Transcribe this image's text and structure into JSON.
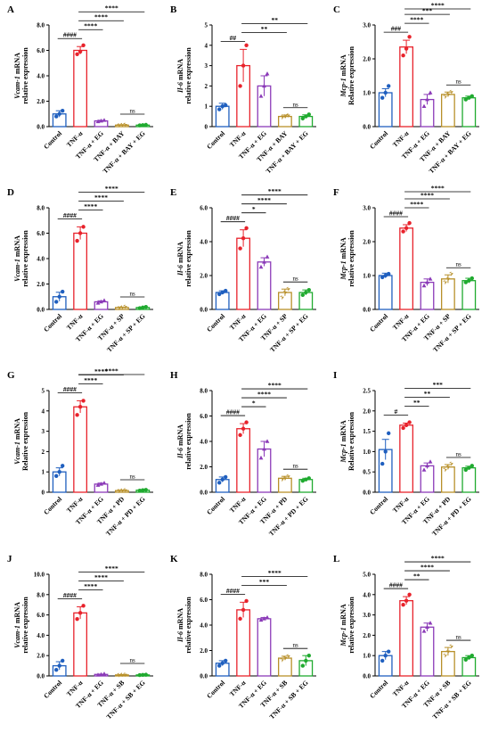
{
  "figure": {
    "colors": {
      "control": "#1f5fbf",
      "tnf": "#e8222b",
      "eg": "#8b3ab8",
      "inhibitor": "#b8902a",
      "combo": "#1faa2f"
    }
  },
  "chart_data": [
    {
      "panel": "A",
      "type": "bar",
      "gene": "Vcam-1",
      "ylabel_gene": "Vcam-1 mRNA",
      "ylabel_sub": "relative expression",
      "ylim": [
        0,
        8
      ],
      "yticks": [
        "0.0",
        "2.0",
        "4.0",
        "6.0",
        "8.0"
      ],
      "categories": [
        "Control",
        "TNF-α",
        "TNF-α + EG",
        "TNF-α + BAY",
        "TNF-α + BAY + EG"
      ],
      "values": [
        1.0,
        6.0,
        0.45,
        0.12,
        0.12
      ],
      "errors": [
        0.25,
        0.3,
        0.05,
        0.03,
        0.03
      ],
      "points": [
        [
          0.8,
          1.0,
          1.25
        ],
        [
          5.7,
          5.9,
          6.4
        ],
        [
          0.4,
          0.45,
          0.5
        ],
        [
          0.1,
          0.12,
          0.14
        ],
        [
          0.1,
          0.12,
          0.14
        ]
      ],
      "annotations": [
        {
          "from": 0,
          "to": 1,
          "label": "####"
        },
        {
          "from": 1,
          "to": 2,
          "label": "****"
        },
        {
          "from": 1,
          "to": 3,
          "label": "****"
        },
        {
          "from": 1,
          "to": 4,
          "label": "****"
        },
        {
          "from": 3,
          "to": 4,
          "label": "ns"
        }
      ]
    },
    {
      "panel": "B",
      "type": "bar",
      "gene": "Il-6",
      "ylabel_gene": "Il-6 mRNA",
      "ylabel_sub": "relative expression",
      "ylim": [
        0,
        5
      ],
      "yticks": [
        "0",
        "1",
        "2",
        "3",
        "4",
        "5"
      ],
      "categories": [
        "Control",
        "TNF-α",
        "TNF-α + EG",
        "TNF-α + BAY",
        "TNF-α + BAY + EG"
      ],
      "values": [
        1.0,
        3.0,
        2.0,
        0.5,
        0.5
      ],
      "errors": [
        0.15,
        0.8,
        0.5,
        0.07,
        0.08
      ],
      "points": [
        [
          0.85,
          1.0,
          1.05
        ],
        [
          2.0,
          3.0,
          4.0
        ],
        [
          1.5,
          2.0,
          2.6
        ],
        [
          0.45,
          0.5,
          0.55
        ],
        [
          0.4,
          0.5,
          0.6
        ]
      ],
      "annotations": [
        {
          "from": 0,
          "to": 1,
          "label": "##"
        },
        {
          "from": 1,
          "to": 3,
          "label": "**"
        },
        {
          "from": 1,
          "to": 4,
          "label": "**"
        },
        {
          "from": 3,
          "to": 4,
          "label": "ns"
        }
      ]
    },
    {
      "panel": "C",
      "type": "bar",
      "gene": "Mcp-1",
      "ylabel_gene": "Mcp-1 mRNA",
      "ylabel_sub": "Relative expression",
      "ylim": [
        0,
        3
      ],
      "yticks": [
        "0.0",
        "1.0",
        "2.0",
        "3.0"
      ],
      "categories": [
        "Control",
        "TNF-α",
        "TNF-α + EG",
        "TNF-α + BAY",
        "TNF-α + BAY + EG"
      ],
      "values": [
        1.0,
        2.35,
        0.8,
        0.95,
        0.85
      ],
      "errors": [
        0.12,
        0.2,
        0.15,
        0.07,
        0.05
      ],
      "points": [
        [
          0.85,
          1.0,
          1.2
        ],
        [
          2.1,
          2.3,
          2.65
        ],
        [
          0.6,
          0.8,
          1.0
        ],
        [
          0.88,
          0.95,
          1.02
        ],
        [
          0.8,
          0.85,
          0.9
        ]
      ],
      "annotations": [
        {
          "from": 0,
          "to": 1,
          "label": "###"
        },
        {
          "from": 1,
          "to": 2,
          "label": "****"
        },
        {
          "from": 1,
          "to": 3,
          "label": "***"
        },
        {
          "from": 1,
          "to": 4,
          "label": "****"
        },
        {
          "from": 3,
          "to": 4,
          "label": "ns"
        }
      ]
    },
    {
      "panel": "D",
      "type": "bar",
      "gene": "Vcam-1",
      "ylabel_gene": "Vcam-1 mRNA",
      "ylabel_sub": "relative expression",
      "ylim": [
        0,
        8
      ],
      "yticks": [
        "0.0",
        "2.0",
        "4.0",
        "6.0",
        "8.0"
      ],
      "categories": [
        "Control",
        "TNF-α",
        "TNF-α + EG",
        "TNF-α + SP",
        "TNF-α + SP + EG"
      ],
      "values": [
        1.0,
        6.0,
        0.6,
        0.15,
        0.15
      ],
      "errors": [
        0.35,
        0.5,
        0.08,
        0.03,
        0.03
      ],
      "points": [
        [
          0.6,
          1.0,
          1.4
        ],
        [
          5.4,
          6.0,
          6.5
        ],
        [
          0.5,
          0.6,
          0.7
        ],
        [
          0.1,
          0.15,
          0.2
        ],
        [
          0.1,
          0.15,
          0.2
        ]
      ],
      "annotations": [
        {
          "from": 0,
          "to": 1,
          "label": "####"
        },
        {
          "from": 1,
          "to": 2,
          "label": "****"
        },
        {
          "from": 1,
          "to": 3,
          "label": "****"
        },
        {
          "from": 1,
          "to": 4,
          "label": "****"
        },
        {
          "from": 3,
          "to": 4,
          "label": "ns"
        }
      ]
    },
    {
      "panel": "E",
      "type": "bar",
      "gene": "Il-6",
      "ylabel_gene": "Il-6 mRNA",
      "ylabel_sub": "relative expression",
      "ylim": [
        0,
        6
      ],
      "yticks": [
        "0.0",
        "2.0",
        "4.0",
        "6.0"
      ],
      "categories": [
        "Control",
        "TNF-α",
        "TNF-α + EG",
        "TNF-α + SP",
        "TNF-α + SP + EG"
      ],
      "values": [
        1.0,
        4.2,
        2.8,
        1.0,
        1.0
      ],
      "errors": [
        0.1,
        0.5,
        0.25,
        0.2,
        0.15
      ],
      "points": [
        [
          0.9,
          1.0,
          1.1
        ],
        [
          3.6,
          4.2,
          4.8
        ],
        [
          2.5,
          2.8,
          3.1
        ],
        [
          0.7,
          1.0,
          1.2
        ],
        [
          0.85,
          1.0,
          1.15
        ]
      ],
      "annotations": [
        {
          "from": 0,
          "to": 1,
          "label": "####"
        },
        {
          "from": 1,
          "to": 2,
          "label": "*"
        },
        {
          "from": 1,
          "to": 3,
          "label": "****"
        },
        {
          "from": 1,
          "to": 4,
          "label": "****"
        },
        {
          "from": 3,
          "to": 4,
          "label": "ns"
        }
      ]
    },
    {
      "panel": "F",
      "type": "bar",
      "gene": "Mcp-1",
      "ylabel_gene": "Mcp-1 mRNA",
      "ylabel_sub": "relative expression",
      "ylim": [
        0,
        3
      ],
      "yticks": [
        "0.0",
        "1.0",
        "2.0",
        "3.0"
      ],
      "categories": [
        "Control",
        "TNF-α",
        "TNF-α + EG",
        "TNF-α + SP",
        "TNF-α + SP + EG"
      ],
      "values": [
        1.0,
        2.4,
        0.8,
        0.9,
        0.85
      ],
      "errors": [
        0.07,
        0.1,
        0.1,
        0.12,
        0.07
      ],
      "points": [
        [
          0.95,
          1.0,
          1.05
        ],
        [
          2.3,
          2.4,
          2.55
        ],
        [
          0.7,
          0.8,
          0.9
        ],
        [
          0.8,
          0.9,
          1.05
        ],
        [
          0.8,
          0.85,
          0.92
        ]
      ],
      "annotations": [
        {
          "from": 0,
          "to": 1,
          "label": "####"
        },
        {
          "from": 1,
          "to": 2,
          "label": "****"
        },
        {
          "from": 1,
          "to": 3,
          "label": "****"
        },
        {
          "from": 1,
          "to": 4,
          "label": "****"
        },
        {
          "from": 3,
          "to": 4,
          "label": "ns"
        }
      ]
    },
    {
      "panel": "G",
      "type": "bar",
      "gene": "Vcam-1",
      "ylabel_gene": "Vcam-1 mRNA",
      "ylabel_sub": "Relative expression",
      "ylim": [
        0,
        5
      ],
      "yticks": [
        "0",
        "1",
        "2",
        "3",
        "4",
        "5"
      ],
      "categories": [
        "Control",
        "TNF-α",
        "TNF-α + EG",
        "TNF-α + PD",
        "TNF-α + PD + EG"
      ],
      "values": [
        1.0,
        4.2,
        0.4,
        0.08,
        0.1
      ],
      "errors": [
        0.2,
        0.3,
        0.05,
        0.02,
        0.02
      ],
      "points": [
        [
          0.8,
          1.0,
          1.3
        ],
        [
          3.8,
          4.2,
          4.5
        ],
        [
          0.35,
          0.4,
          0.45
        ],
        [
          0.06,
          0.08,
          0.1
        ],
        [
          0.08,
          0.1,
          0.12
        ]
      ],
      "annotations": [
        {
          "from": 0,
          "to": 1,
          "label": "####"
        },
        {
          "from": 1,
          "to": 2,
          "label": "****"
        },
        {
          "from": 1,
          "to": 3,
          "label": "****"
        },
        {
          "from": 1,
          "to": 4,
          "label": "****"
        },
        {
          "from": 3,
          "to": 4,
          "label": "ns"
        }
      ]
    },
    {
      "panel": "H",
      "type": "bar",
      "gene": "Il-6",
      "ylabel_gene": "Il-6 mRNA",
      "ylabel_sub": "relative expression",
      "ylim": [
        0,
        8
      ],
      "yticks": [
        "0.0",
        "2.0",
        "4.0",
        "6.0",
        "8.0"
      ],
      "categories": [
        "Control",
        "TNF-α",
        "TNF-α + EG",
        "TNF-α + PD",
        "TNF-α + PD + EG"
      ],
      "values": [
        1.0,
        5.0,
        3.4,
        1.1,
        1.0
      ],
      "errors": [
        0.2,
        0.4,
        0.6,
        0.15,
        0.1
      ],
      "points": [
        [
          0.75,
          1.0,
          1.2
        ],
        [
          4.5,
          5.0,
          5.5
        ],
        [
          2.7,
          3.4,
          4.0
        ],
        [
          1.0,
          1.1,
          1.25
        ],
        [
          0.9,
          1.0,
          1.1
        ]
      ],
      "annotations": [
        {
          "from": 0,
          "to": 1,
          "label": "####"
        },
        {
          "from": 1,
          "to": 2,
          "label": "*"
        },
        {
          "from": 1,
          "to": 3,
          "label": "****"
        },
        {
          "from": 1,
          "to": 4,
          "label": "****"
        },
        {
          "from": 3,
          "to": 4,
          "label": "ns"
        }
      ]
    },
    {
      "panel": "I",
      "type": "bar",
      "gene": "Mcp-1",
      "ylabel_gene": "Mcp-1 mRNA",
      "ylabel_sub": "Relative expression",
      "ylim": [
        0,
        2.5
      ],
      "yticks": [
        "0.0",
        "0.5",
        "1.0",
        "1.5",
        "2.0",
        "2.5"
      ],
      "categories": [
        "Control",
        "TNF-α",
        "TNF-α + EG",
        "TNF-α + PD",
        "TNF-α + PD + EG"
      ],
      "values": [
        1.05,
        1.65,
        0.65,
        0.62,
        0.6
      ],
      "errors": [
        0.25,
        0.05,
        0.07,
        0.06,
        0.04
      ],
      "points": [
        [
          0.7,
          1.0,
          1.45
        ],
        [
          1.58,
          1.65,
          1.72
        ],
        [
          0.55,
          0.65,
          0.75
        ],
        [
          0.55,
          0.62,
          0.7
        ],
        [
          0.55,
          0.6,
          0.65
        ]
      ],
      "annotations": [
        {
          "from": 0,
          "to": 1,
          "label": "#"
        },
        {
          "from": 1,
          "to": 2,
          "label": "**"
        },
        {
          "from": 1,
          "to": 3,
          "label": "**"
        },
        {
          "from": 1,
          "to": 4,
          "label": "***"
        },
        {
          "from": 3,
          "to": 4,
          "label": "ns"
        }
      ]
    },
    {
      "panel": "J",
      "type": "bar",
      "gene": "Vcam-1",
      "ylabel_gene": "Vcam-1 mRNA",
      "ylabel_sub": "relative expression",
      "ylim": [
        0,
        10
      ],
      "yticks": [
        "0.0",
        "2.0",
        "4.0",
        "6.0",
        "8.0",
        "10.0"
      ],
      "categories": [
        "Control",
        "TNF-α",
        "TNF-α + EG",
        "TNF-α + SB",
        "TNF-α + SB + EG"
      ],
      "values": [
        1.0,
        6.2,
        0.15,
        0.1,
        0.1
      ],
      "errors": [
        0.4,
        0.6,
        0.03,
        0.02,
        0.02
      ],
      "points": [
        [
          0.6,
          1.0,
          1.5
        ],
        [
          5.6,
          6.2,
          6.9
        ],
        [
          0.1,
          0.15,
          0.2
        ],
        [
          0.08,
          0.1,
          0.12
        ],
        [
          0.08,
          0.1,
          0.12
        ]
      ],
      "annotations": [
        {
          "from": 0,
          "to": 1,
          "label": "####"
        },
        {
          "from": 1,
          "to": 2,
          "label": "****"
        },
        {
          "from": 1,
          "to": 3,
          "label": "****"
        },
        {
          "from": 1,
          "to": 4,
          "label": "****"
        },
        {
          "from": 3,
          "to": 4,
          "label": "ns"
        }
      ]
    },
    {
      "panel": "K",
      "type": "bar",
      "gene": "Il-6",
      "ylabel_gene": "Il-6 mRNA",
      "ylabel_sub": "relative expression",
      "ylim": [
        0,
        8
      ],
      "yticks": [
        "0.0",
        "2.0",
        "4.0",
        "6.0",
        "8.0"
      ],
      "categories": [
        "Control",
        "TNF-α",
        "TNF-α + EG",
        "TNF-α + SB",
        "TNF-α + SB + EG"
      ],
      "values": [
        1.0,
        5.2,
        4.5,
        1.4,
        1.2
      ],
      "errors": [
        0.2,
        0.6,
        0.1,
        0.15,
        0.4
      ],
      "points": [
        [
          0.8,
          1.0,
          1.2
        ],
        [
          4.5,
          5.2,
          5.9
        ],
        [
          4.4,
          4.5,
          4.6
        ],
        [
          1.25,
          1.4,
          1.55
        ],
        [
          0.8,
          1.2,
          1.6
        ]
      ],
      "annotations": [
        {
          "from": 0,
          "to": 1,
          "label": "####"
        },
        {
          "from": 1,
          "to": 3,
          "label": "***"
        },
        {
          "from": 1,
          "to": 4,
          "label": "****"
        },
        {
          "from": 3,
          "to": 4,
          "label": "ns"
        }
      ]
    },
    {
      "panel": "L",
      "type": "bar",
      "gene": "Mcp-1",
      "ylabel_gene": "Mcp-1 mRNA",
      "ylabel_sub": "relative expression",
      "ylim": [
        0,
        5
      ],
      "yticks": [
        "0.0",
        "1.0",
        "2.0",
        "3.0",
        "4.0",
        "5.0"
      ],
      "categories": [
        "Control",
        "TNF-α",
        "TNF-α + EG",
        "TNF-α + SB",
        "TNF-α + SB + EG"
      ],
      "values": [
        1.0,
        3.7,
        2.4,
        1.2,
        0.9
      ],
      "errors": [
        0.2,
        0.2,
        0.2,
        0.2,
        0.1
      ],
      "points": [
        [
          0.75,
          1.0,
          1.2
        ],
        [
          3.5,
          3.7,
          4.0
        ],
        [
          2.2,
          2.4,
          2.6
        ],
        [
          1.0,
          1.2,
          1.45
        ],
        [
          0.8,
          0.9,
          1.0
        ]
      ],
      "annotations": [
        {
          "from": 0,
          "to": 1,
          "label": "####"
        },
        {
          "from": 1,
          "to": 2,
          "label": "**"
        },
        {
          "from": 1,
          "to": 3,
          "label": "****"
        },
        {
          "from": 1,
          "to": 4,
          "label": "****"
        },
        {
          "from": 3,
          "to": 4,
          "label": "ns"
        }
      ]
    }
  ]
}
